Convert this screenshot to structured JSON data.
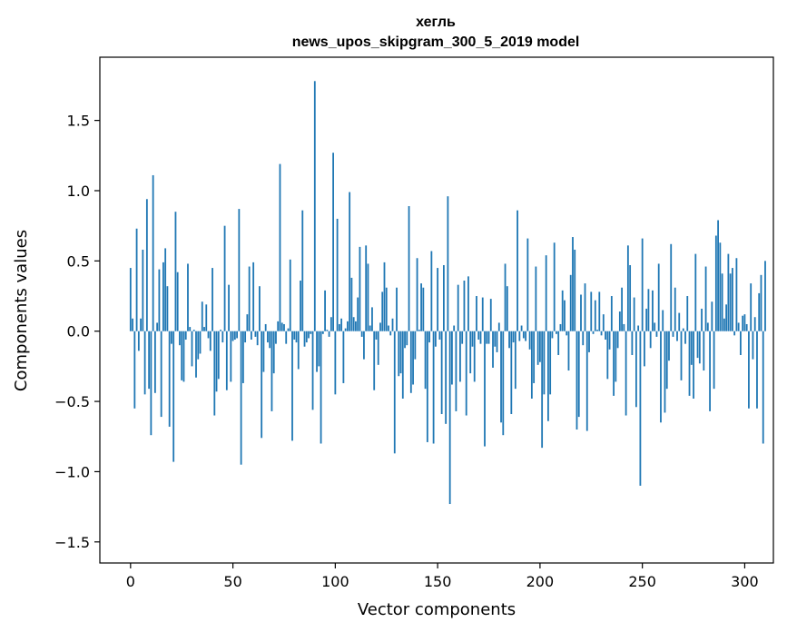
{
  "chart_data": {
    "type": "bar",
    "title_lines": [
      "хегль",
      "news_upos_skipgram_300_5_2019 model"
    ],
    "xlabel": "Vector components",
    "ylabel": "Components values",
    "xlim": [
      -15,
      314
    ],
    "ylim": [
      -1.65,
      1.95
    ],
    "xticks": [
      0,
      50,
      100,
      150,
      200,
      250,
      300
    ],
    "yticks": [
      -1.5,
      -1.0,
      -0.5,
      0.0,
      0.5,
      1.0,
      1.5
    ],
    "ytick_labels": [
      "−1.5",
      "−1.0",
      "−0.5",
      "0.0",
      "0.5",
      "1.0",
      "1.5"
    ],
    "bar_color": "#1f77b4",
    "grid": false,
    "values": [
      0.45,
      0.09,
      -0.55,
      0.73,
      -0.14,
      0.09,
      0.58,
      -0.45,
      0.94,
      -0.41,
      -0.74,
      1.11,
      -0.44,
      0.06,
      0.44,
      -0.61,
      0.49,
      0.59,
      0.32,
      -0.68,
      -0.09,
      -0.93,
      0.85,
      0.42,
      -0.1,
      -0.35,
      -0.36,
      -0.06,
      0.48,
      0.03,
      -0.25,
      0.01,
      -0.33,
      -0.2,
      -0.16,
      0.21,
      0.03,
      0.19,
      -0.05,
      -0.14,
      0.45,
      -0.6,
      -0.43,
      -0.34,
      0.01,
      -0.08,
      0.75,
      -0.42,
      0.33,
      -0.36,
      -0.07,
      -0.06,
      -0.05,
      0.87,
      -0.95,
      -0.37,
      -0.08,
      0.12,
      0.46,
      -0.06,
      0.49,
      -0.04,
      -0.1,
      0.32,
      -0.76,
      -0.29,
      0.05,
      -0.08,
      -0.12,
      -0.57,
      -0.3,
      -0.09,
      0.07,
      1.19,
      0.06,
      0.05,
      -0.09,
      0.02,
      0.51,
      -0.78,
      -0.06,
      -0.08,
      -0.27,
      0.36,
      0.86,
      -0.11,
      -0.08,
      -0.05,
      -0.02,
      -0.56,
      1.78,
      -0.29,
      -0.25,
      -0.8,
      -0.02,
      0.29,
      0.01,
      -0.04,
      0.1,
      1.27,
      -0.45,
      0.8,
      0.05,
      0.09,
      -0.37,
      0.02,
      0.07,
      0.99,
      0.38,
      0.1,
      0.07,
      0.24,
      0.6,
      -0.04,
      -0.2,
      0.61,
      0.48,
      0.04,
      0.17,
      -0.42,
      -0.06,
      -0.24,
      0.06,
      0.28,
      0.49,
      0.31,
      0.04,
      -0.03,
      0.09,
      -0.87,
      0.31,
      -0.32,
      -0.3,
      -0.48,
      -0.12,
      -0.1,
      0.89,
      -0.44,
      -0.38,
      -0.2,
      0.52,
      0.01,
      0.34,
      0.31,
      -0.41,
      -0.79,
      -0.08,
      0.57,
      -0.8,
      -0.11,
      0.45,
      -0.06,
      -0.59,
      0.47,
      -0.66,
      0.96,
      -1.23,
      -0.38,
      0.04,
      -0.57,
      0.33,
      -0.36,
      -0.09,
      0.36,
      -0.6,
      0.39,
      -0.3,
      -0.11,
      -0.36,
      0.25,
      -0.06,
      -0.09,
      0.24,
      -0.82,
      -0.09,
      -0.09,
      0.23,
      -0.26,
      -0.11,
      -0.15,
      0.06,
      -0.65,
      -0.74,
      0.48,
      0.32,
      -0.12,
      -0.59,
      -0.08,
      -0.41,
      0.86,
      -0.07,
      0.04,
      -0.05,
      -0.07,
      0.66,
      -0.13,
      -0.48,
      -0.37,
      0.46,
      -0.24,
      -0.22,
      -0.83,
      -0.45,
      0.54,
      -0.64,
      -0.45,
      -0.05,
      0.63,
      -0.02,
      -0.17,
      0.05,
      0.29,
      0.22,
      -0.03,
      -0.28,
      0.4,
      0.67,
      0.58,
      -0.7,
      -0.61,
      0.26,
      -0.1,
      0.34,
      -0.71,
      -0.15,
      0.28,
      -0.02,
      0.22,
      0.01,
      0.28,
      -0.03,
      0.12,
      -0.06,
      -0.34,
      -0.13,
      0.25,
      -0.46,
      -0.36,
      -0.12,
      0.14,
      0.31,
      0.05,
      -0.6,
      0.61,
      0.47,
      -0.17,
      0.24,
      -0.54,
      0.04,
      -1.1,
      0.66,
      -0.25,
      0.16,
      0.3,
      -0.12,
      0.29,
      0.06,
      -0.04,
      0.48,
      -0.65,
      0.15,
      -0.58,
      -0.41,
      -0.21,
      0.62,
      -0.04,
      0.31,
      -0.07,
      0.13,
      -0.35,
      0.02,
      -0.09,
      0.25,
      -0.46,
      -0.24,
      -0.48,
      0.55,
      -0.19,
      -0.23,
      0.16,
      -0.28,
      0.46,
      0.06,
      -0.57,
      0.21,
      -0.41,
      0.68,
      0.79,
      0.63,
      0.41,
      0.09,
      0.19,
      0.55,
      0.41,
      0.45,
      -0.03,
      0.52,
      0.06,
      -0.17,
      0.11,
      0.12,
      0.05,
      -0.55,
      0.34,
      -0.2,
      0.1,
      -0.55,
      0.27,
      0.4,
      -0.8,
      0.5
    ]
  }
}
